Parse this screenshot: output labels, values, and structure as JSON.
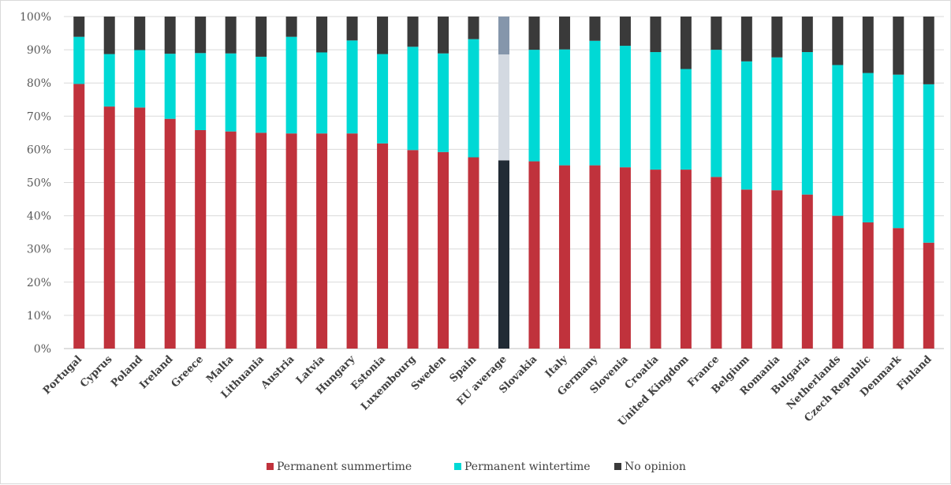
{
  "chart_data": {
    "type": "bar",
    "stacked": true,
    "orientation": "vertical",
    "title": "",
    "xlabel": "",
    "ylabel": "",
    "ylim": [
      0,
      100
    ],
    "y_ticks": [
      "0%",
      "10%",
      "20%",
      "30%",
      "40%",
      "50%",
      "60%",
      "70%",
      "80%",
      "90%",
      "100%"
    ],
    "grid": true,
    "legend_position": "bottom",
    "categories": [
      "Portugal",
      "Cyprus",
      "Poland",
      "Ireland",
      "Greece",
      "Malta",
      "Lithuania",
      "Austria",
      "Latvia",
      "Hungary",
      "Estonia",
      "Luxembourg",
      "Sweden",
      "Spain",
      "EU average",
      "Slovakia",
      "Italy",
      "Germany",
      "Slovenia",
      "Croatia",
      "United Kingdom",
      "France",
      "Belgium",
      "Romania",
      "Bulgaria",
      "Netherlands",
      "Czech Republic",
      "Denmark",
      "Finland"
    ],
    "highlight_category": "EU average",
    "series": [
      {
        "name": "Permanent summertime",
        "color": "#c0323c",
        "highlight_color": "#212b35",
        "values": [
          79.7,
          72.9,
          72.6,
          69.2,
          65.8,
          65.4,
          65.0,
          64.8,
          64.8,
          64.8,
          61.8,
          59.8,
          59.2,
          57.6,
          56.7,
          56.4,
          55.2,
          55.2,
          54.6,
          53.9,
          53.9,
          51.7,
          47.9,
          47.7,
          46.4,
          40.0,
          38.0,
          36.3,
          31.9
        ]
      },
      {
        "name": "Permanent wintertime",
        "color": "#00d9d5",
        "highlight_color": "#d3d9e1",
        "values": [
          14.2,
          15.8,
          17.3,
          19.6,
          23.2,
          23.5,
          22.9,
          29.1,
          24.4,
          28.0,
          26.9,
          31.1,
          29.7,
          35.6,
          31.9,
          33.6,
          34.9,
          37.5,
          36.6,
          35.4,
          30.3,
          38.3,
          38.6,
          40.0,
          42.9,
          45.4,
          45.0,
          46.2,
          47.7
        ]
      },
      {
        "name": "No opinion",
        "color": "#3a3a3a",
        "highlight_color": "#8596ab",
        "values": [
          6.1,
          11.3,
          10.1,
          11.2,
          11.0,
          11.1,
          12.1,
          6.1,
          10.8,
          7.2,
          11.3,
          9.1,
          11.1,
          6.8,
          11.4,
          10.0,
          9.9,
          7.3,
          8.8,
          10.7,
          15.8,
          10.0,
          13.5,
          12.3,
          10.7,
          14.6,
          17.0,
          17.5,
          20.4
        ]
      }
    ]
  }
}
